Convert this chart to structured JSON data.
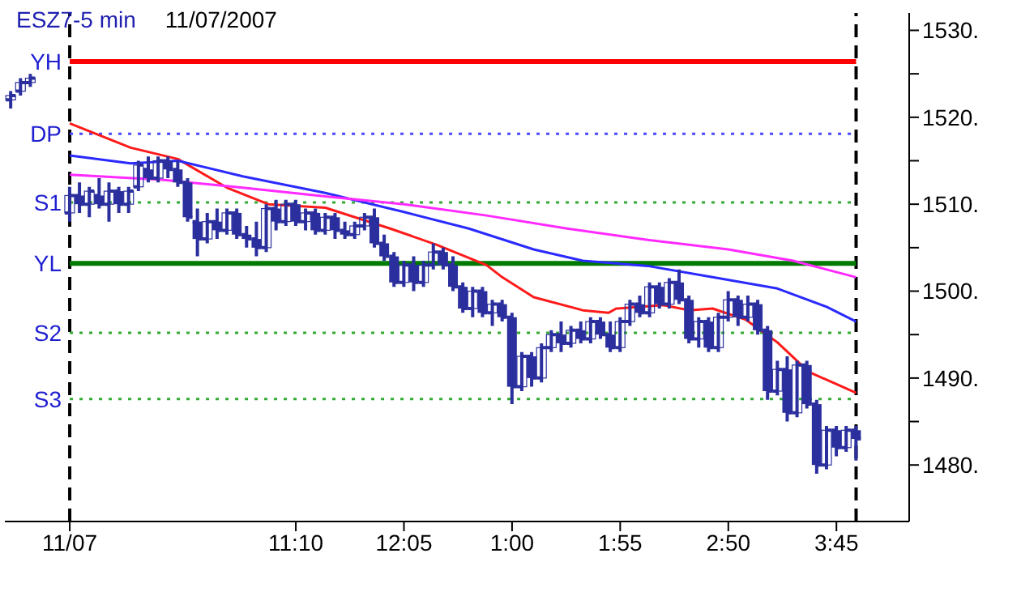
{
  "chart_data": {
    "type": "candlestick",
    "title": "ESZ7-5 min",
    "subtitle": "11/07/2007",
    "x": [
      "2007-11-07T08:45",
      "2007-11-07T08:50",
      "2007-11-07T08:55",
      "2007-11-07T09:15",
      "2007-11-07T09:20",
      "2007-11-07T09:25",
      "2007-11-07T09:30",
      "2007-11-07T09:35",
      "2007-11-07T09:40",
      "2007-11-07T09:45",
      "2007-11-07T09:50",
      "2007-11-07T09:55",
      "2007-11-07T10:00",
      "2007-11-07T10:05",
      "2007-11-07T10:10",
      "2007-11-07T10:15",
      "2007-11-07T10:20",
      "2007-11-07T10:25",
      "2007-11-07T10:30",
      "2007-11-07T10:35",
      "2007-11-07T10:40",
      "2007-11-07T10:45",
      "2007-11-07T10:50",
      "2007-11-07T10:55",
      "2007-11-07T11:00",
      "2007-11-07T11:05",
      "2007-11-07T11:10",
      "2007-11-07T11:15",
      "2007-11-07T11:20",
      "2007-11-07T11:25",
      "2007-11-07T11:30",
      "2007-11-07T11:35",
      "2007-11-07T11:40",
      "2007-11-07T11:45",
      "2007-11-07T11:50",
      "2007-11-07T11:55",
      "2007-11-07T12:00",
      "2007-11-07T12:05",
      "2007-11-07T12:10",
      "2007-11-07T12:15",
      "2007-11-07T12:20",
      "2007-11-07T12:25",
      "2007-11-07T12:30",
      "2007-11-07T12:35",
      "2007-11-07T12:40",
      "2007-11-07T12:45",
      "2007-11-07T12:50",
      "2007-11-07T12:55",
      "2007-11-07T13:00",
      "2007-11-07T13:05",
      "2007-11-07T13:10",
      "2007-11-07T13:15",
      "2007-11-07T13:20",
      "2007-11-07T13:25",
      "2007-11-07T13:30",
      "2007-11-07T13:35",
      "2007-11-07T13:40",
      "2007-11-07T13:45",
      "2007-11-07T13:50",
      "2007-11-07T13:55",
      "2007-11-07T14:00",
      "2007-11-07T14:05",
      "2007-11-07T14:10",
      "2007-11-07T14:15",
      "2007-11-07T14:20",
      "2007-11-07T14:25",
      "2007-11-07T14:30",
      "2007-11-07T14:35",
      "2007-11-07T14:40",
      "2007-11-07T14:45",
      "2007-11-07T14:50",
      "2007-11-07T14:55",
      "2007-11-07T15:00",
      "2007-11-07T15:05",
      "2007-11-07T15:10",
      "2007-11-07T15:15",
      "2007-11-07T15:20",
      "2007-11-07T15:25",
      "2007-11-07T15:30",
      "2007-11-07T15:35",
      "2007-11-07T15:40",
      "2007-11-07T15:45",
      "2007-11-07T15:50",
      "2007-11-07T15:55"
    ],
    "ohlc": [
      [
        1522,
        1523,
        1521,
        1522.5
      ],
      [
        1523,
        1524.5,
        1522.5,
        1524
      ],
      [
        1524,
        1525,
        1523.5,
        1524.5
      ],
      [
        1509,
        1512,
        1508,
        1511
      ],
      [
        1511,
        1512.5,
        1509,
        1510
      ],
      [
        1510,
        1512,
        1508.5,
        1511.5
      ],
      [
        1511,
        1513,
        1509.5,
        1510
      ],
      [
        1510,
        1512.5,
        1508,
        1511.5
      ],
      [
        1511.5,
        1512,
        1509,
        1510
      ],
      [
        1510,
        1512,
        1509,
        1511.5
      ],
      [
        1512,
        1515,
        1511.5,
        1514.5
      ],
      [
        1514,
        1515.5,
        1512.5,
        1513
      ],
      [
        1513,
        1515.5,
        1512.5,
        1515
      ],
      [
        1515,
        1515.5,
        1513,
        1514
      ],
      [
        1514,
        1515,
        1512,
        1512.5
      ],
      [
        1512.5,
        1513,
        1508,
        1508.5
      ],
      [
        1508,
        1509.5,
        1504,
        1506
      ],
      [
        1506,
        1509,
        1505.5,
        1508
      ],
      [
        1508,
        1509.5,
        1506,
        1507
      ],
      [
        1507,
        1509.5,
        1506.5,
        1509
      ],
      [
        1509,
        1509.5,
        1506,
        1506.5
      ],
      [
        1506.5,
        1507.5,
        1505,
        1506
      ],
      [
        1506,
        1508,
        1504,
        1505
      ],
      [
        1505,
        1510,
        1504.5,
        1509.5
      ],
      [
        1509.5,
        1510.5,
        1507,
        1508
      ],
      [
        1508,
        1510.5,
        1507.5,
        1510
      ],
      [
        1510,
        1510.5,
        1507.5,
        1508
      ],
      [
        1508,
        1509.5,
        1507,
        1509
      ],
      [
        1509,
        1509.5,
        1506.5,
        1507
      ],
      [
        1507,
        1509,
        1506.5,
        1508.5
      ],
      [
        1508.5,
        1509,
        1506,
        1507
      ],
      [
        1507,
        1508,
        1506,
        1506.5
      ],
      [
        1506.5,
        1508,
        1506,
        1507.5
      ],
      [
        1507.5,
        1509,
        1507,
        1508.5
      ],
      [
        1508.5,
        1509.5,
        1505,
        1505.5
      ],
      [
        1505.5,
        1506.5,
        1503.5,
        1504
      ],
      [
        1504,
        1504.5,
        1500.5,
        1501
      ],
      [
        1501,
        1503.5,
        1500.5,
        1503
      ],
      [
        1503,
        1504,
        1500,
        1501
      ],
      [
        1501,
        1503.5,
        1500.5,
        1503
      ],
      [
        1503,
        1505.5,
        1502.5,
        1504.5
      ],
      [
        1504.5,
        1505,
        1502.5,
        1503
      ],
      [
        1503,
        1504,
        1500,
        1500.5
      ],
      [
        1500.5,
        1501,
        1497.5,
        1498
      ],
      [
        1498,
        1500.5,
        1497,
        1500
      ],
      [
        1500,
        1500.5,
        1497,
        1497.5
      ],
      [
        1497.5,
        1499,
        1496,
        1498.5
      ],
      [
        1498.5,
        1499,
        1496.5,
        1497
      ],
      [
        1497,
        1497.5,
        1487,
        1489
      ],
      [
        1489,
        1493,
        1488.5,
        1492.5
      ],
      [
        1492.5,
        1493,
        1489,
        1490
      ],
      [
        1490,
        1494,
        1489.5,
        1493.5
      ],
      [
        1493.5,
        1495.5,
        1493,
        1495
      ],
      [
        1495,
        1496.5,
        1493,
        1494
      ],
      [
        1494,
        1496,
        1493.5,
        1495.5
      ],
      [
        1495.5,
        1496.5,
        1494,
        1494.5
      ],
      [
        1494.5,
        1497,
        1494,
        1496.5
      ],
      [
        1496.5,
        1497,
        1494.5,
        1495
      ],
      [
        1495,
        1496.5,
        1493,
        1493.5
      ],
      [
        1493.5,
        1497,
        1493,
        1496.5
      ],
      [
        1496.5,
        1499,
        1496,
        1498.5
      ],
      [
        1498.5,
        1499.5,
        1497,
        1497.5
      ],
      [
        1497.5,
        1501,
        1497,
        1500.5
      ],
      [
        1500.5,
        1501,
        1498,
        1498.5
      ],
      [
        1498.5,
        1501.5,
        1498,
        1501
      ],
      [
        1501,
        1502.5,
        1498.5,
        1499
      ],
      [
        1499,
        1499.5,
        1494,
        1494.5
      ],
      [
        1494.5,
        1497,
        1493.5,
        1496.5
      ],
      [
        1496.5,
        1497,
        1493,
        1493.5
      ],
      [
        1493.5,
        1497.5,
        1493,
        1497
      ],
      [
        1497,
        1500,
        1496.5,
        1499
      ],
      [
        1499,
        1499.5,
        1496,
        1497
      ],
      [
        1497,
        1499.5,
        1496.5,
        1498.5
      ],
      [
        1498.5,
        1499,
        1495,
        1495.5
      ],
      [
        1495.5,
        1496,
        1487.5,
        1488.5
      ],
      [
        1488.5,
        1492,
        1488,
        1491
      ],
      [
        1491,
        1492.5,
        1485,
        1486
      ],
      [
        1486,
        1492,
        1485.5,
        1491.5
      ],
      [
        1491.5,
        1492,
        1486.5,
        1487
      ],
      [
        1487,
        1487.5,
        1479,
        1480
      ],
      [
        1480,
        1484.5,
        1479.5,
        1484
      ],
      [
        1484,
        1484.5,
        1481,
        1482
      ],
      [
        1482,
        1484.5,
        1481.5,
        1484
      ],
      [
        1484,
        1484.5,
        1480.5,
        1483
      ]
    ],
    "color": "#2b2f9e",
    "series": [
      {
        "type": "line",
        "color": "#ff1a1a",
        "x": [
          "2007-11-07T09:15",
          "2007-11-07T09:46",
          "2007-11-07T10:10",
          "2007-11-07T10:35",
          "2007-11-07T10:56",
          "2007-11-07T11:25",
          "2007-11-07T11:58",
          "2007-11-07T12:22",
          "2007-11-07T12:47",
          "2007-11-07T12:55",
          "2007-11-07T13:11",
          "2007-11-07T13:36",
          "2007-11-07T13:49",
          "2007-11-07T13:53",
          "2007-11-07T14:17",
          "2007-11-07T14:30",
          "2007-11-07T14:42",
          "2007-11-07T14:59",
          "2007-11-07T15:15",
          "2007-11-07T15:31",
          "2007-11-07T15:55"
        ],
        "values": [
          1519.3,
          1516.5,
          1515.2,
          1511.9,
          1510,
          1509.6,
          1507.2,
          1505.3,
          1503,
          1501.6,
          1499.3,
          1497.8,
          1497.5,
          1498,
          1498.4,
          1497.8,
          1498,
          1496.7,
          1494.1,
          1490.7,
          1488.3
        ]
      },
      {
        "type": "line",
        "color": "#2a2aff",
        "x": [
          "2007-11-07T09:15",
          "2007-11-07T09:46",
          "2007-11-07T10:10",
          "2007-11-07T10:43",
          "2007-11-07T11:25",
          "2007-11-07T12:05",
          "2007-11-07T12:38",
          "2007-11-07T13:11",
          "2007-11-07T13:36",
          "2007-11-07T14:09",
          "2007-11-07T14:42",
          "2007-11-07T15:15",
          "2007-11-07T15:40",
          "2007-11-07T15:55"
        ],
        "values": [
          1515.6,
          1514.7,
          1515,
          1513.2,
          1511.3,
          1509.1,
          1507.2,
          1504.8,
          1503.5,
          1502.9,
          1501.6,
          1500.3,
          1498.2,
          1496.5
        ]
      },
      {
        "type": "line",
        "color": "#ff2aff",
        "x": [
          "2007-11-07T09:15",
          "2007-11-07T10:02",
          "2007-11-07T10:43",
          "2007-11-07T11:25",
          "2007-11-07T12:05",
          "2007-11-07T12:47",
          "2007-11-07T13:28",
          "2007-11-07T14:09",
          "2007-11-07T14:50",
          "2007-11-07T15:23",
          "2007-11-07T15:55"
        ],
        "values": [
          1513.4,
          1512.8,
          1511.9,
          1510.9,
          1510,
          1508.7,
          1507.2,
          1505.9,
          1504.8,
          1503.5,
          1501.6
        ]
      }
    ],
    "xlim": [
      "2007-11-07T08:42",
      "2007-11-07T16:22"
    ],
    "xticks": [
      {
        "value": "2007-11-07T09:15",
        "label": "11/07"
      },
      {
        "value": "2007-11-07T11:10",
        "label": "11:10"
      },
      {
        "value": "2007-11-07T12:05",
        "label": "12:05"
      },
      {
        "value": "2007-11-07T13:00",
        "label": "1:00"
      },
      {
        "value": "2007-11-07T13:55",
        "label": "1:55"
      },
      {
        "value": "2007-11-07T14:50",
        "label": "2:50"
      },
      {
        "value": "2007-11-07T15:45",
        "label": "3:45"
      }
    ],
    "ylim": [
      1473.5,
      1532
    ],
    "yticks": [
      {
        "value": 1480,
        "label": "1480."
      },
      {
        "value": 1485,
        "label": null
      },
      {
        "value": 1490,
        "label": "1490."
      },
      {
        "value": 1495,
        "label": null
      },
      {
        "value": 1500,
        "label": "1500."
      },
      {
        "value": 1505,
        "label": null
      },
      {
        "value": 1510,
        "label": "1510."
      },
      {
        "value": 1515,
        "label": null
      },
      {
        "value": 1520,
        "label": "1520."
      },
      {
        "value": 1525,
        "label": null
      },
      {
        "value": 1530,
        "label": "1530."
      }
    ],
    "ref_lines": [
      {
        "axis": "y",
        "value": 1526.4,
        "label": "YH",
        "color": "#ff0000",
        "line_style": "solid"
      },
      {
        "axis": "y",
        "value": 1518.1,
        "label": "DP",
        "color": "#4a4aff",
        "line_style": "dotted"
      },
      {
        "axis": "y",
        "value": 1510.2,
        "label": "S1",
        "color": "#33aa33",
        "line_style": "dotted"
      },
      {
        "axis": "y",
        "value": 1503.2,
        "label": "YL",
        "color": "#007a00",
        "line_style": "solid"
      },
      {
        "axis": "y",
        "value": 1495.2,
        "label": "S2",
        "color": "#33aa33",
        "line_style": "dotted"
      },
      {
        "axis": "y",
        "value": 1487.6,
        "label": "S3",
        "color": "#33aa33",
        "line_style": "dotted"
      },
      {
        "axis": "x",
        "value": "2007-11-07T09:15",
        "color": "#000000",
        "line_style": "dashed"
      },
      {
        "axis": "x",
        "value": "2007-11-07T15:55",
        "color": "#000000",
        "line_style": "dashed"
      }
    ],
    "grid": false,
    "legend": false
  }
}
